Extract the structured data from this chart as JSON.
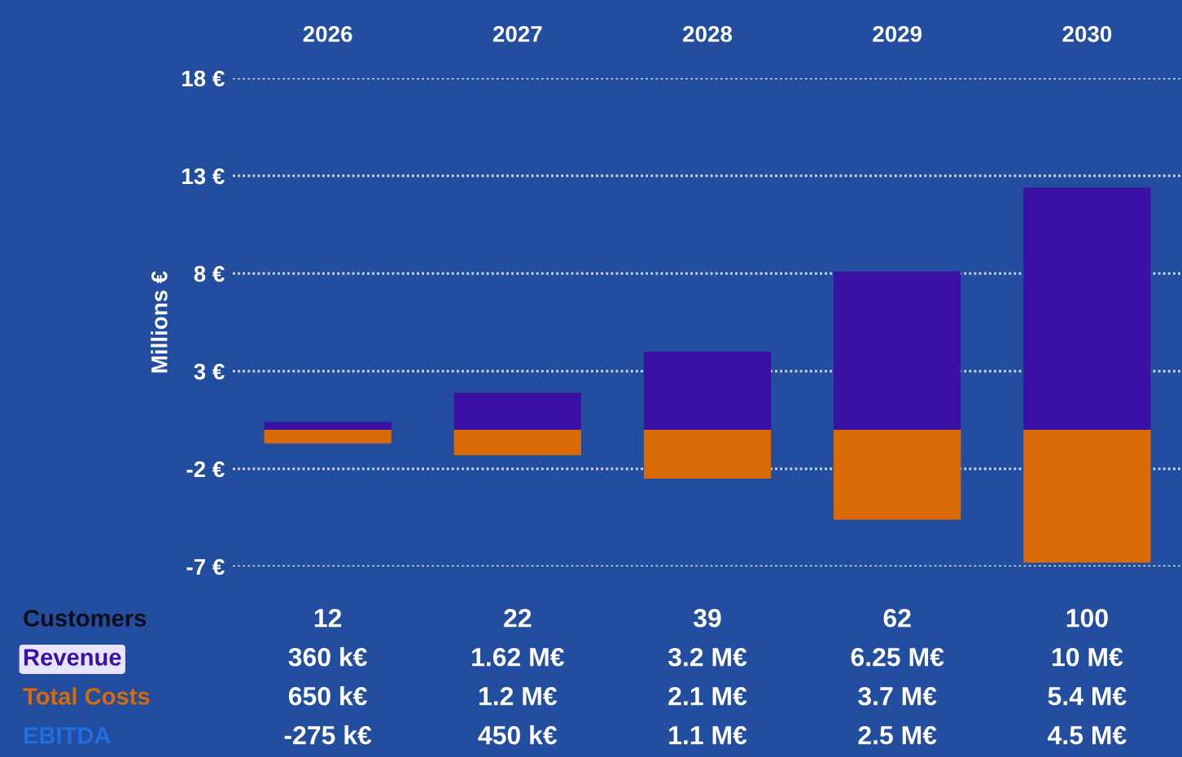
{
  "chart_data": {
    "type": "bar",
    "categories": [
      "2026",
      "2027",
      "2028",
      "2029",
      "2030"
    ],
    "series": [
      {
        "name": "Revenue",
        "color": "#3a10a5",
        "values": [
          0.4,
          1.9,
          4.0,
          8.1,
          12.4
        ]
      },
      {
        "name": "Total Costs",
        "color": "#d96a05",
        "values": [
          -0.7,
          -1.3,
          -2.5,
          -4.6,
          -6.8
        ]
      }
    ],
    "stacked": true,
    "ylabel": "Millions €",
    "ylim": [
      -7,
      18
    ],
    "yticks": [
      {
        "value": -7,
        "label": "-7 €"
      },
      {
        "value": -2,
        "label": "-2 €"
      },
      {
        "value": 3,
        "label": "3 €"
      },
      {
        "value": 8,
        "label": "8 €"
      },
      {
        "value": 13,
        "label": "13 €"
      },
      {
        "value": 18,
        "label": "18 €"
      }
    ],
    "grid": "y",
    "annotations": [
      "Customers",
      "12",
      "22",
      "39",
      "62",
      "100",
      "360 k€",
      "1.62 M€",
      "3.2 M€",
      "6.25 M€",
      "10 M€",
      "650 k€",
      "1.2 M€",
      "2.1 M€",
      "3.7 M€",
      "5.4 M€",
      "EBITDA",
      "-275 k€",
      "450 k€",
      "1.1 M€",
      "2.5 M€",
      "4.5 M€"
    ]
  }
}
